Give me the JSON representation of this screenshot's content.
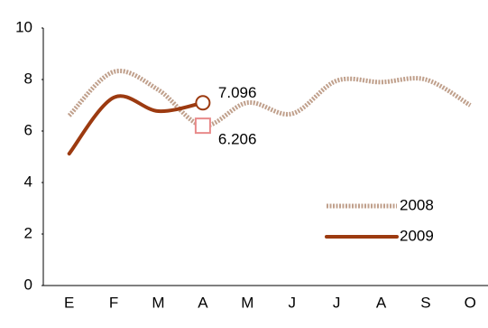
{
  "chart_data": {
    "type": "line",
    "categories": [
      "E",
      "F",
      "M",
      "A",
      "M",
      "J",
      "J",
      "A",
      "S",
      "O"
    ],
    "series": [
      {
        "name": "2008",
        "color": "#c0a08c",
        "line_style": "dotted",
        "marker": "square",
        "marker_color": "#e88a8a",
        "values": [
          6.6,
          8.3,
          7.6,
          6.206,
          7.1,
          6.67,
          7.95,
          7.9,
          8.0,
          7.0
        ],
        "value_labels": [
          null,
          null,
          null,
          "6.206",
          null,
          null,
          null,
          null,
          null,
          null
        ]
      },
      {
        "name": "2009",
        "color": "#9c3a10",
        "line_style": "solid",
        "marker": "circle",
        "marker_color": "#9c3a10",
        "values": [
          5.12,
          7.3,
          6.77,
          7.096,
          null,
          null,
          null,
          null,
          null,
          null
        ],
        "value_labels": [
          null,
          null,
          null,
          "7.096",
          null,
          null,
          null,
          null,
          null,
          null
        ]
      }
    ],
    "ylim": [
      0,
      10
    ],
    "yticks": [
      0,
      2,
      4,
      6,
      8,
      10
    ],
    "grid": false,
    "smooth": true,
    "legend": "lower-right"
  }
}
